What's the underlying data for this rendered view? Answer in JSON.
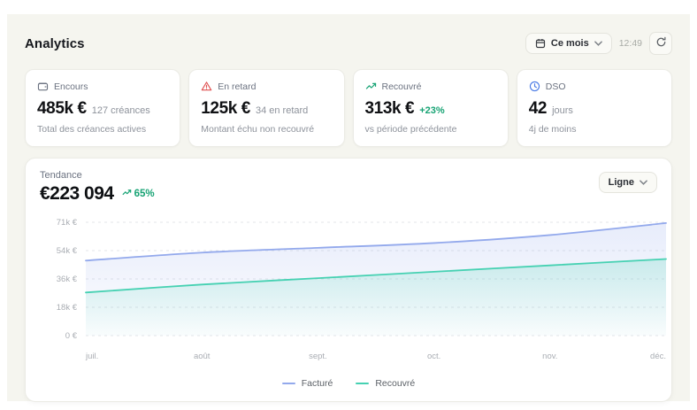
{
  "header": {
    "title": "Analytics",
    "period_button": "Ce mois",
    "time": "12:49"
  },
  "stats": [
    {
      "icon": "wallet-icon",
      "label": "Encours",
      "value": "485k €",
      "sub": "127 créances",
      "desc": "Total des créances actives"
    },
    {
      "icon": "alert-triangle-icon",
      "label": "En retard",
      "value": "125k €",
      "sub": "34 en retard",
      "desc": "Montant échu non recouvré"
    },
    {
      "icon": "trending-up-icon",
      "label": "Recouvré",
      "value": "313k €",
      "sub": "+23%",
      "desc": "vs période précédente"
    },
    {
      "icon": "clock-icon",
      "label": "DSO",
      "value": "42",
      "sub": "jours",
      "desc": "4j de moins"
    }
  ],
  "colors": {
    "red": "#df5050",
    "green": "#17a374",
    "blue": "#4b7be5",
    "line_blue": "#93a9ec",
    "line_teal": "#46d1b2",
    "grid": "#e3e5e8",
    "tick_text": "#a9adb3"
  },
  "trend": {
    "label": "Tendance",
    "value": "€223 094",
    "delta": "65%",
    "chart_type_button": "Ligne"
  },
  "chart_data": {
    "type": "area",
    "title": "Tendance",
    "x": [
      "juil.",
      "août",
      "sept.",
      "oct.",
      "nov.",
      "déc."
    ],
    "y_ticks": [
      "0 €",
      "18k €",
      "36k €",
      "54k €",
      "71k €"
    ],
    "ylim": [
      0,
      71
    ],
    "grid": "dashed-horizontal",
    "legend_position": "bottom",
    "series": [
      {
        "name": "Facturé",
        "color": "#93a9ec",
        "values": [
          47,
          52,
          55,
          58,
          63,
          70.5
        ]
      },
      {
        "name": "Recouvré",
        "color": "#46d1b2",
        "values": [
          27,
          32,
          36,
          40,
          44,
          48
        ]
      }
    ]
  }
}
